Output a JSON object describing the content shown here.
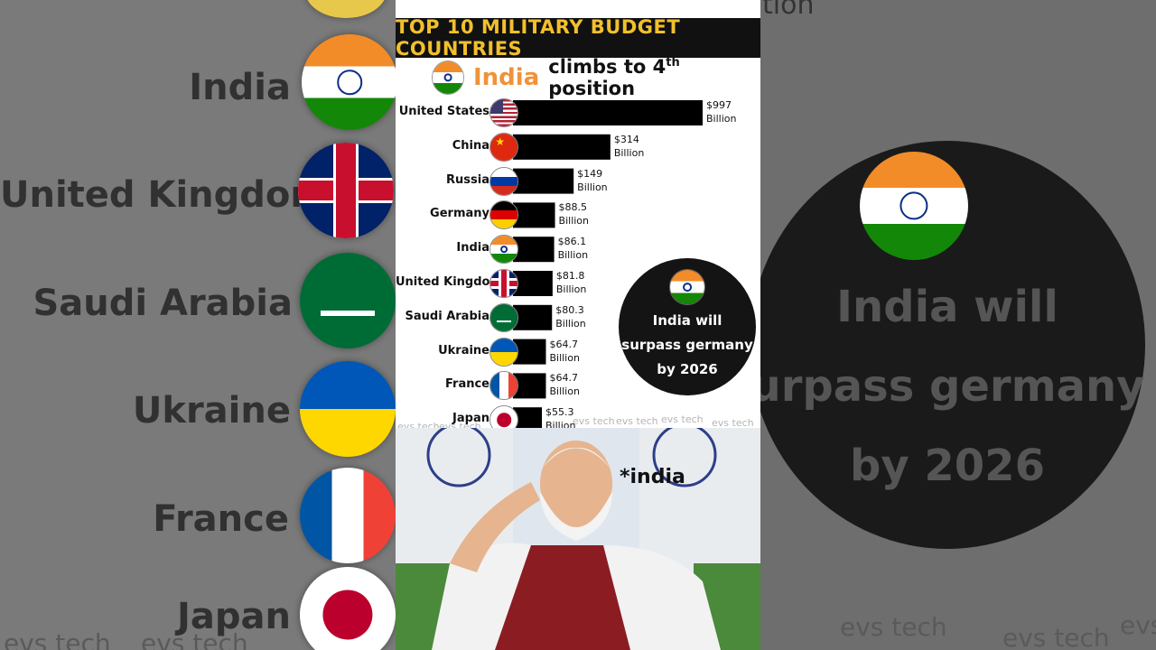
{
  "title": "TOP 10 MILITARY BUDGET COUNTRIES",
  "headline": {
    "highlight": "India",
    "rest": "climbs to 4",
    "sup": "th",
    "end": " position"
  },
  "chart_data": {
    "type": "bar",
    "orientation": "horizontal",
    "categories": [
      "United States",
      "China",
      "Russia",
      "Germany",
      "India",
      "United Kingdom",
      "Saudi Arabia",
      "Ukraine",
      "France",
      "Japan"
    ],
    "values": [
      997,
      314,
      149,
      88.5,
      86.1,
      81.8,
      80.3,
      64.7,
      64.7,
      55.3
    ],
    "value_labels": [
      "$997",
      "$314",
      "$149",
      "$88.5",
      "$86.1",
      "$81.8",
      "$80.3",
      "$64.7",
      "$64.7",
      "$55.3"
    ],
    "unit_label": "Billion",
    "flags": [
      "us-flag-icon",
      "china-flag-icon",
      "russia-flag-icon",
      "germany-flag-icon",
      "india-flag-icon",
      "uk-flag-icon",
      "saudi-arabia-flag-icon",
      "ukraine-flag-icon",
      "france-flag-icon",
      "japan-flag-icon"
    ]
  },
  "callout": {
    "lines": [
      "India will",
      "surpass germany",
      "by 2026"
    ]
  },
  "photo_caption": "*india",
  "watermark": "evs tech",
  "background": {
    "left_labels": [
      "India",
      "United Kingdom",
      "Saudi Arabia",
      "Ukraine",
      "France",
      "Japan"
    ],
    "right_lines": [
      "India will",
      "urpass germany",
      "by 2026"
    ],
    "right_top_fragment": "tion"
  },
  "colors": {
    "bar": "#000000",
    "title_text": "#f3c02c",
    "highlight": "#f0923a"
  }
}
